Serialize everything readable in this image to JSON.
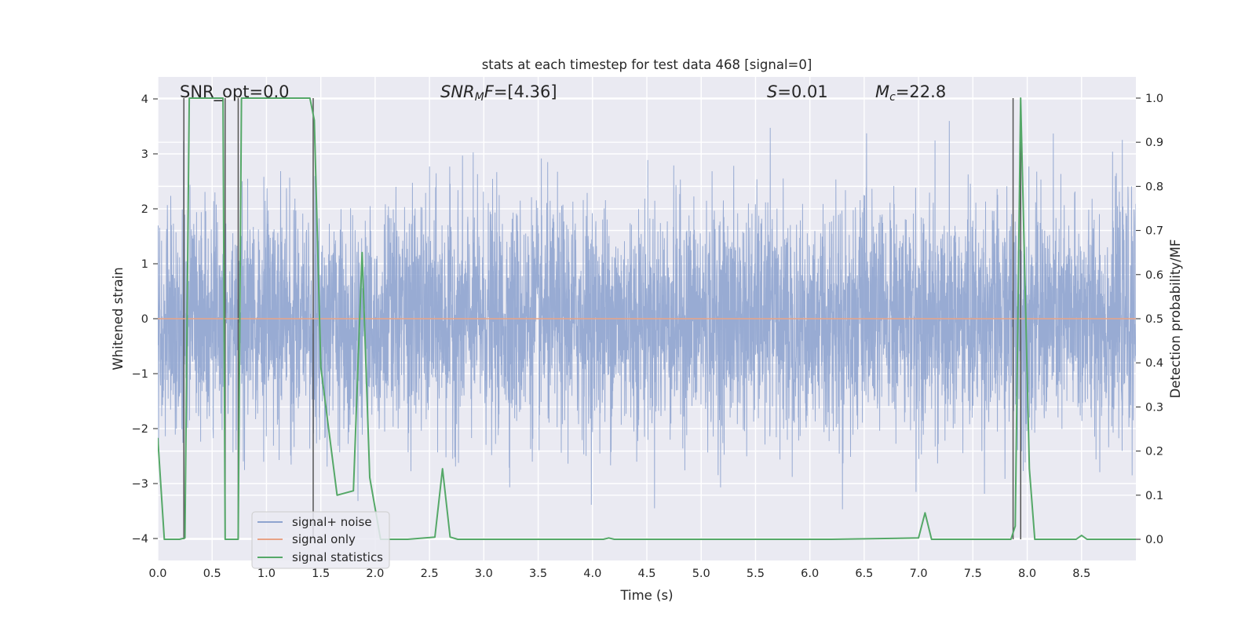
{
  "chart_data": {
    "type": "line",
    "title": "stats at each timestep for test data 468 [signal=0]",
    "xlabel": "Time (s)",
    "ylabel": "Whitened strain",
    "y2label": "Detection probability/MF",
    "xlim": [
      0.0,
      9.0
    ],
    "ylim": [
      -4.4,
      4.4
    ],
    "y2lim": [
      -0.048,
      1.048
    ],
    "x_ticks": [
      "0.0",
      "0.5",
      "1.0",
      "1.5",
      "2.0",
      "2.5",
      "3.0",
      "3.5",
      "4.0",
      "4.5",
      "5.0",
      "5.5",
      "6.0",
      "6.5",
      "7.0",
      "7.5",
      "8.0",
      "8.5"
    ],
    "y_ticks": [
      "−4",
      "−3",
      "−2",
      "−1",
      "0",
      "1",
      "2",
      "3",
      "4"
    ],
    "y2_ticks": [
      "0.0",
      "0.1",
      "0.2",
      "0.3",
      "0.4",
      "0.5",
      "0.6",
      "0.7",
      "0.8",
      "0.9",
      "1.0"
    ],
    "grid": true,
    "legend_position": "lower-left",
    "annotations": {
      "snr_opt": "SNR_opt=0.0",
      "snr_mf": "=[4.36]",
      "s": "=0.01",
      "mc": "=22.8"
    },
    "series": [
      {
        "name": "signal+ noise",
        "color": "#8fa4cf",
        "axis": "left",
        "description": "whitened strain noise, roughly spanning -3.8 to 3.6"
      },
      {
        "name": "signal only",
        "color": "#e8a386",
        "axis": "left",
        "x": [
          0.0,
          9.0
        ],
        "y": [
          0.0,
          0.0
        ]
      },
      {
        "name": "signal statistics",
        "color": "#55a868",
        "axis": "right",
        "x": [
          0.0,
          0.06,
          0.2,
          0.25,
          0.29,
          0.32,
          0.6,
          0.62,
          0.69,
          0.74,
          0.77,
          0.8,
          1.4,
          1.44,
          1.5,
          1.65,
          1.8,
          1.88,
          1.95,
          2.05,
          2.3,
          2.55,
          2.62,
          2.69,
          2.76,
          4.1,
          4.15,
          4.2,
          6.2,
          7.0,
          7.06,
          7.12,
          7.85,
          7.89,
          7.94,
          8.02,
          8.07,
          8.45,
          8.5,
          8.55,
          9.0
        ],
        "y": [
          0.23,
          0.0,
          0.0,
          0.003,
          1.0,
          1.0,
          1.0,
          0.0,
          0.0,
          0.0,
          1.0,
          1.0,
          1.0,
          0.95,
          0.39,
          0.1,
          0.11,
          0.65,
          0.14,
          0.0,
          0.0,
          0.005,
          0.16,
          0.005,
          0.0,
          0.0,
          0.003,
          0.0,
          0.0,
          0.003,
          0.06,
          0.0,
          0.0,
          0.03,
          1.0,
          0.16,
          0.0,
          0.0,
          0.009,
          0.0,
          0.0
        ]
      }
    ],
    "vertical_lines": {
      "color": "#555555",
      "x": [
        0.24,
        0.62,
        0.74,
        1.43,
        7.87,
        7.94
      ],
      "y2_range": [
        0.0,
        1.0
      ]
    }
  }
}
